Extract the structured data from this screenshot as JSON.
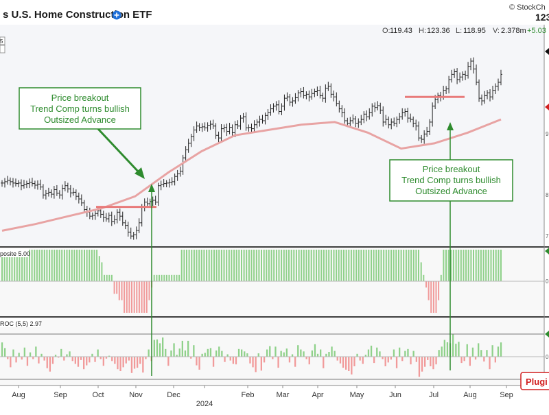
{
  "header": {
    "title": "s U.S. Home Construction ETF",
    "watermark": "© StockCh",
    "last_price": "123",
    "ohlcv": [
      {
        "label": "O:",
        "value": "119.43"
      },
      {
        "label": "H:",
        "value": "123.36"
      },
      {
        "label": "L:",
        "value": "118.95"
      },
      {
        "label": "V:",
        "value": "2.378m"
      },
      {
        "label": "",
        "value": "+5.03"
      }
    ],
    "scale_value": "5"
  },
  "colors": {
    "up": "#8fd18a",
    "down": "#f19a9a",
    "price_bar": "#222222",
    "sma": "#e8a3a3",
    "breakout_line": "#e87a7a",
    "callout_green": "#2e8b2e",
    "plugin_red": "#d11e1e"
  },
  "annotations": [
    {
      "lines": [
        "Price breakout",
        "Trend Comp turns bullish",
        "Outsized Advance"
      ]
    },
    {
      "lines": [
        "Price breakout",
        "Trend Comp turns bullish",
        "Outsized Advance"
      ]
    }
  ],
  "plugin_label": "Plugi",
  "chart_data": [
    {
      "type": "ohlc",
      "title": "s U.S. Home Construction ETF",
      "x_axis_labels": [
        "Aug",
        "Sep",
        "Oct",
        "Nov",
        "Dec",
        "2024",
        "Feb",
        "Mar",
        "Apr",
        "May",
        "Jun",
        "Jul",
        "Aug",
        "Sep"
      ],
      "visible_y_ticks": [
        "5",
        "9",
        "8",
        "7"
      ],
      "series": [
        {
          "name": "Price",
          "values": [
            89,
            89.5,
            90,
            89.5,
            89,
            88.8,
            89,
            88,
            88.5,
            88.8,
            89.3,
            88.8,
            88.2,
            88.6,
            87.5,
            84.5,
            85,
            85.5,
            84.8,
            86.5,
            85.2,
            84.5,
            87,
            88,
            86.8,
            85.3,
            85.5,
            84,
            83,
            81.5,
            79,
            78,
            76.5,
            76.8,
            77.5,
            78.5,
            77.2,
            76,
            75.5,
            76.8,
            74.5,
            75.2,
            78,
            76.5,
            74,
            73,
            70.5,
            69,
            69.5,
            71.2,
            74,
            80,
            81.8,
            81.2,
            82,
            82.5,
            81.8,
            88,
            88.5,
            88.8,
            89,
            89.2,
            89.5,
            91.5,
            92.5,
            93.5,
            98.5,
            101.5,
            104,
            106.5,
            109,
            110.5,
            110,
            110.2,
            109.8,
            110.8,
            111.2,
            110.5,
            107,
            106,
            109.5,
            110,
            108.5,
            110,
            108,
            111,
            110.5,
            113.5,
            114,
            109.8,
            110,
            109.5,
            111,
            112,
            113,
            112.5,
            114.5,
            115.5,
            117,
            118,
            118.5,
            116,
            118,
            121,
            121.5,
            119.5,
            120,
            121.2,
            123,
            123.5,
            122,
            122.5,
            121.5,
            122.8,
            123.5,
            124,
            122,
            121,
            124.8,
            125.5,
            122.5,
            121.5,
            119,
            117,
            115.5,
            112.5,
            111.5,
            112.5,
            113.2,
            111.5,
            112,
            113,
            115,
            114,
            115.5,
            118,
            117.5,
            118.2,
            116.5,
            112,
            113,
            111,
            112,
            111.5,
            113,
            114,
            115.5,
            116,
            113.5,
            113,
            111.5,
            110.5,
            106,
            105.5,
            107.5,
            108.5,
            112,
            118,
            120.5,
            122,
            121.5,
            124,
            124.5,
            128,
            130,
            131,
            128,
            129,
            130,
            129.5,
            133,
            135,
            132,
            127,
            121,
            120,
            122,
            123,
            121.5,
            124,
            125.5,
            127,
            130
          ]
        },
        {
          "name": "SMA",
          "values": [
            71,
            73.5,
            76.5,
            79.5,
            84,
            93,
            101,
            107,
            109,
            111,
            112,
            108,
            102,
            104,
            108,
            113
          ]
        }
      ],
      "breakout_levels": [
        80,
        121.5
      ],
      "ylim": [
        68,
        142
      ]
    },
    {
      "type": "bar",
      "label": "posite 5.00",
      "series": [
        {
          "name": "Trend Composite",
          "values": [
            5,
            5,
            5,
            5,
            5,
            5,
            5,
            5,
            5,
            5,
            5,
            5,
            5,
            5,
            5,
            5,
            5,
            5,
            5,
            5,
            5,
            5,
            5,
            5,
            5,
            5,
            5,
            5,
            5,
            5,
            5,
            5,
            5,
            5,
            5,
            5,
            5,
            5,
            5,
            4,
            3,
            1,
            1,
            1,
            1,
            -2,
            -2,
            -3,
            -3,
            -5,
            -5,
            -5,
            -5,
            -5,
            -5,
            -5,
            -5,
            -5,
            -5,
            -3,
            -1,
            1,
            1,
            1,
            1,
            1,
            1,
            1,
            1,
            1,
            1,
            1,
            5,
            5,
            5,
            5,
            5,
            5,
            5,
            5,
            5,
            5,
            5,
            5,
            5,
            5,
            5,
            5,
            5,
            5,
            5,
            5,
            5,
            5,
            5,
            5,
            5,
            5,
            5,
            5,
            5,
            5,
            5,
            5,
            5,
            5,
            5,
            5,
            5,
            5,
            5,
            5,
            5,
            5,
            5,
            5,
            5,
            5,
            5,
            5,
            5,
            5,
            5,
            5,
            5,
            5,
            5,
            5,
            5,
            5,
            5,
            5,
            5,
            5,
            5,
            5,
            5,
            5,
            5,
            5,
            5,
            5,
            5,
            5,
            5,
            5,
            5,
            5,
            5,
            5,
            5,
            5,
            5,
            5,
            5,
            5,
            5,
            5,
            5,
            5,
            5,
            5,
            5,
            5,
            5,
            5,
            5,
            5,
            3,
            1,
            -1,
            -3,
            -5,
            -5,
            -5,
            -3,
            1,
            5,
            5,
            5,
            5,
            5,
            5,
            5,
            5,
            5,
            5,
            5,
            5,
            5,
            5,
            5,
            5,
            5,
            5,
            5,
            5,
            5,
            5,
            5,
            5
          ]
        }
      ],
      "ylim": [
        -5,
        5
      ]
    },
    {
      "type": "bar",
      "label": "ROC (5,5) 2.97",
      "series": [
        {
          "name": "ROC (5,5)",
          "values": [
            2.97,
            1.8,
            -0.5,
            -2.2,
            1.5,
            -1.2,
            0.8,
            -0.6,
            1.9,
            -1.9,
            0.9,
            -0.5,
            2.1,
            -1.4,
            0.6,
            -0.8,
            -2.4,
            -3.1,
            -1.5,
            0.4,
            -0.2,
            1.6,
            -0.8,
            0.5,
            1.1,
            -0.9,
            -1.5,
            -2.1,
            -0.7,
            -2.6,
            -1.8,
            -1.2,
            0.6,
            -1.1,
            1.5,
            -0.5,
            -1.9,
            -0.4,
            0.2,
            -0.9,
            -1.5,
            -2.6,
            -3,
            -2.2,
            -1.4,
            -0.8,
            -3.4,
            -2.5,
            -2.3,
            -1.5,
            -3.3,
            -0.5,
            1.5,
            -0.9,
            3.5,
            3.6,
            2.8,
            4,
            1.6,
            -1.9,
            1.3,
            2.8,
            0.4,
            1.7,
            3.3,
            1.3,
            3.3,
            -0.4,
            2.4,
            -1.8,
            -2.7,
            0.6,
            0.8,
            1.6,
            1.8,
            -2.1,
            1.3,
            2.1,
            1.2,
            -1.1,
            0.5,
            -0.8,
            -1.5,
            -1.6,
            1.6,
            1.5,
            1.1,
            0.7,
            -1.4,
            -2.2,
            -3.2,
            0.7,
            -2.9,
            -1.2,
            1.5,
            2.2,
            -0.5,
            2.1,
            -2.3,
            1.2,
            0.9,
            1.7,
            -1.2,
            0.5,
            -2.1,
            2.4,
            1.5,
            1.1,
            -0.5,
            -1.6,
            1.3,
            2.6,
            0.6,
            1.5,
            -2.4,
            0.6,
            1,
            2.1,
            1.2,
            -0.8,
            -1.4,
            -2.3,
            -2.7,
            -3,
            -3.7,
            -2,
            0.6,
            -0.8,
            -1.5,
            0.4,
            1.5,
            2.3,
            -1.3,
            1.9,
            1.1,
            -0.5,
            -2,
            -1.2,
            -0.6,
            1.5,
            -2.4,
            1.9,
            -0.9,
            1.2,
            1.6,
            -1.6,
            1.2,
            -1.1,
            -4.2,
            -3.1,
            -2.1,
            -0.7,
            -2,
            -2.6,
            -1.6,
            1.4,
            2.1,
            3.5,
            3,
            2.8,
            4.7,
            2.7,
            3.1,
            -1.3,
            -0.9,
            2.6,
            -1.9,
            1.9,
            -0.6,
            2.8,
            1.4,
            -1,
            1.4,
            -2.6,
            2.4,
            -1.2,
            2.1,
            2.97
          ]
        }
      ],
      "ylim": [
        -5,
        5
      ]
    }
  ]
}
